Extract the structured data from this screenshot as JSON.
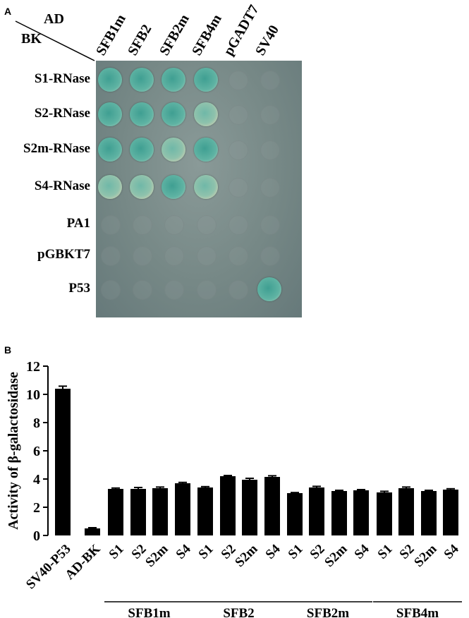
{
  "panel_a": {
    "letter": "A",
    "corner_top": "AD",
    "corner_left": "BK",
    "columns": [
      "SFB1m",
      "SFB2",
      "SFB2m",
      "SFB4m",
      "pGADT7",
      "SV40"
    ],
    "rows": [
      "S1-RNase",
      "S2-RNase",
      "S2m-RNase",
      "S4-RNase",
      "PA1",
      "pGBKT7",
      "P53"
    ],
    "growth": [
      [
        1,
        1,
        1,
        1,
        0,
        0
      ],
      [
        1,
        1,
        1,
        1,
        0,
        0
      ],
      [
        1,
        1,
        1,
        1,
        0,
        0
      ],
      [
        1,
        1,
        1,
        1,
        0,
        0
      ],
      [
        0,
        0,
        0,
        0,
        0,
        0
      ],
      [
        0,
        0,
        0,
        0,
        0,
        0
      ],
      [
        0,
        0,
        0,
        0,
        0,
        1
      ]
    ]
  },
  "panel_b": {
    "letter": "B"
  },
  "chart_data": {
    "type": "bar",
    "ylabel": "Activity of β-galactosidase",
    "ylim": [
      0,
      12
    ],
    "yticks": [
      0,
      2,
      4,
      6,
      8,
      10,
      12
    ],
    "categories": [
      "SV40-P53",
      "AD-BK",
      "S1",
      "S2",
      "S2m",
      "S4",
      "S1",
      "S2",
      "S2m",
      "S4",
      "S1",
      "S2",
      "S2m",
      "S4",
      "S1",
      "S2",
      "S2m",
      "S4"
    ],
    "values": [
      10.4,
      0.5,
      3.3,
      3.3,
      3.35,
      3.7,
      3.4,
      4.2,
      3.95,
      4.15,
      3.0,
      3.4,
      3.15,
      3.2,
      3.05,
      3.35,
      3.15,
      3.25
    ],
    "errors": [
      0.18,
      0.05,
      0.06,
      0.1,
      0.08,
      0.06,
      0.06,
      0.05,
      0.1,
      0.08,
      0.04,
      0.08,
      0.05,
      0.05,
      0.08,
      0.08,
      0.05,
      0.06
    ],
    "groups": [
      {
        "label": "SFB1m",
        "start": 2,
        "end": 5
      },
      {
        "label": "SFB2",
        "start": 6,
        "end": 9
      },
      {
        "label": "SFB2m",
        "start": 10,
        "end": 13
      },
      {
        "label": "SFB4m",
        "start": 14,
        "end": 17
      }
    ],
    "color": "#000000"
  }
}
